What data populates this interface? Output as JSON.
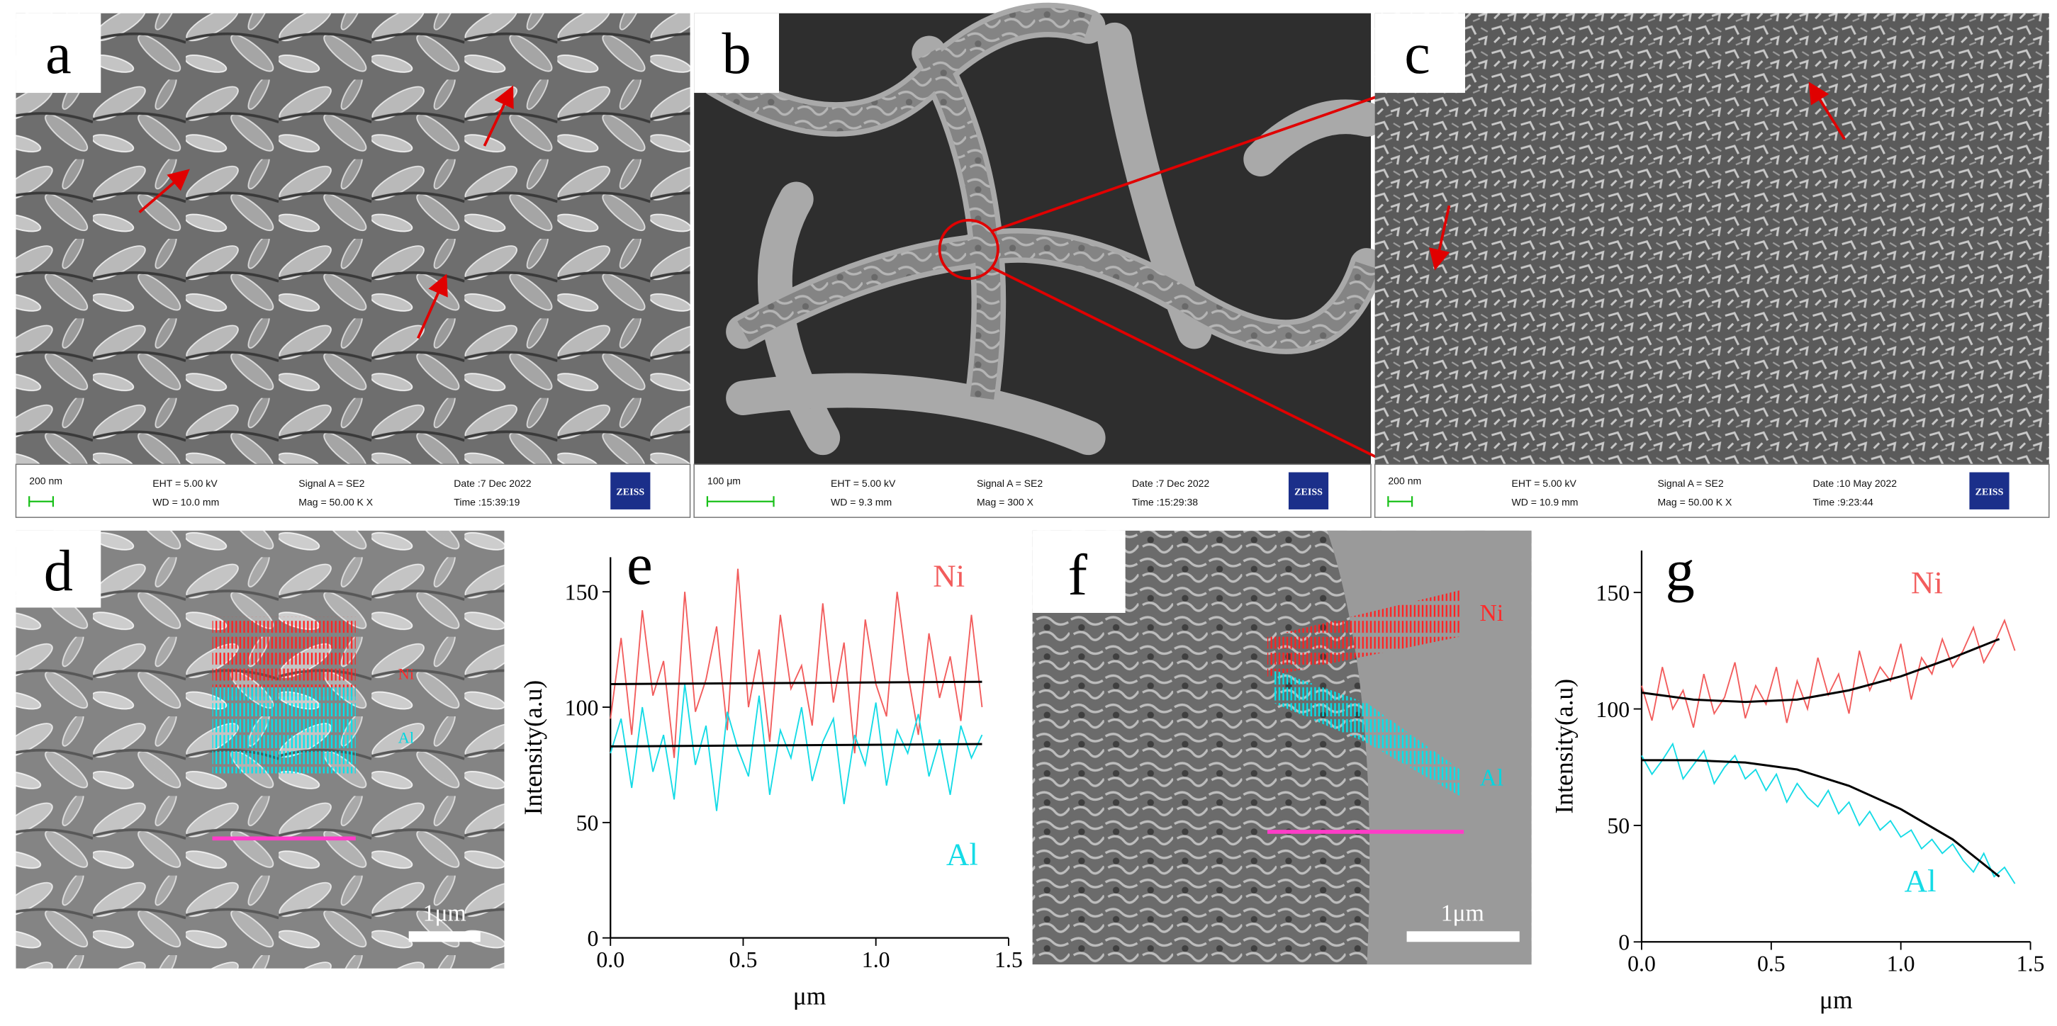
{
  "sem_panels": [
    {
      "label": "a",
      "scale_bar": "200 nm",
      "info": [
        "EHT = 5.00 kV",
        "WD = 10.0 mm",
        "Signal A = SE2",
        "Mag = 50.00 K X",
        "Date :7 Dec 2022",
        "Time :15:39:19"
      ],
      "logo": "ZEISS"
    },
    {
      "label": "b",
      "scale_bar": "100 μm",
      "info": [
        "EHT = 5.00 kV",
        "WD = 9.3 mm",
        "Signal A = SE2",
        "Mag = 300 X",
        "Date :7 Dec 2022",
        "Time :15:29:38"
      ],
      "logo": "ZEISS"
    },
    {
      "label": "c",
      "scale_bar": "200 nm",
      "info": [
        "EHT = 5.00 kV",
        "WD = 10.9 mm",
        "Signal A = SE2",
        "Mag = 50.00 K X",
        "Date :10 May 2022",
        "Time :9:23:44"
      ],
      "logo": "ZEISS"
    }
  ],
  "map_panels": [
    {
      "label": "d",
      "annotations": [
        "Ni",
        "Al"
      ],
      "scale_bar": "1μm"
    },
    {
      "label": "f",
      "annotations": [
        "Ni",
        "Al"
      ],
      "scale_bar": "1μm"
    }
  ],
  "chart_data": [
    {
      "type": "line",
      "panel_label": "e",
      "xlabel": "μm",
      "ylabel": "Intensity(a.u)",
      "xlim": [
        0,
        1.5
      ],
      "ylim": [
        0,
        165
      ],
      "xticks": [
        {
          "value": 0,
          "label": "0.0"
        },
        0.5,
        {
          "value": 1,
          "label": "1.0"
        },
        1.5
      ],
      "yticks": [
        0,
        50,
        100,
        150
      ],
      "series": [
        {
          "name": "Ni",
          "color": "#f25c5c",
          "x": [
            0,
            0.04,
            0.08,
            0.12,
            0.16,
            0.2,
            0.24,
            0.28,
            0.32,
            0.36,
            0.4,
            0.44,
            0.48,
            0.52,
            0.56,
            0.6,
            0.64,
            0.68,
            0.72,
            0.76,
            0.8,
            0.84,
            0.88,
            0.92,
            0.96,
            1,
            1.04,
            1.08,
            1.12,
            1.16,
            1.2,
            1.24,
            1.28,
            1.32,
            1.36,
            1.4
          ],
          "values": [
            95,
            130,
            88,
            142,
            105,
            120,
            78,
            150,
            98,
            112,
            135,
            90,
            160,
            100,
            125,
            85,
            140,
            108,
            118,
            92,
            145,
            102,
            128,
            80,
            138,
            110,
            96,
            150,
            115,
            88,
            132,
            104,
            122,
            94,
            140,
            100
          ]
        },
        {
          "name": "Al",
          "color": "#14dbe6",
          "x": [
            0,
            0.04,
            0.08,
            0.12,
            0.16,
            0.2,
            0.24,
            0.28,
            0.32,
            0.36,
            0.4,
            0.44,
            0.48,
            0.52,
            0.56,
            0.6,
            0.64,
            0.68,
            0.72,
            0.76,
            0.8,
            0.84,
            0.88,
            0.92,
            0.96,
            1,
            1.04,
            1.08,
            1.12,
            1.16,
            1.2,
            1.24,
            1.28,
            1.32,
            1.36,
            1.4
          ],
          "values": [
            80,
            95,
            65,
            100,
            72,
            88,
            60,
            110,
            75,
            92,
            55,
            98,
            82,
            70,
            105,
            62,
            90,
            78,
            100,
            68,
            85,
            95,
            58,
            88,
            75,
            102,
            66,
            90,
            80,
            97,
            70,
            86,
            62,
            92,
            78,
            88
          ]
        },
        {
          "color": "#000000",
          "x": [
            0,
            1.4
          ],
          "values": [
            110,
            111
          ]
        },
        {
          "color": "#000000",
          "x": [
            0,
            1.4
          ],
          "values": [
            83,
            84
          ]
        }
      ]
    },
    {
      "type": "line",
      "panel_label": "g",
      "xlabel": "μm",
      "ylabel": "Intensity(a.u)",
      "xlim": [
        0,
        1.5
      ],
      "ylim": [
        0,
        168
      ],
      "xticks": [
        {
          "value": 0,
          "label": "0.0"
        },
        0.5,
        {
          "value": 1,
          "label": "1.0"
        },
        1.5
      ],
      "yticks": [
        0,
        50,
        100,
        150
      ],
      "series": [
        {
          "name": "Ni",
          "color": "#f25c5c",
          "x": [
            0,
            0.04,
            0.08,
            0.12,
            0.16,
            0.2,
            0.24,
            0.28,
            0.32,
            0.36,
            0.4,
            0.44,
            0.48,
            0.52,
            0.56,
            0.6,
            0.64,
            0.68,
            0.72,
            0.76,
            0.8,
            0.84,
            0.88,
            0.92,
            0.96,
            1,
            1.04,
            1.08,
            1.12,
            1.16,
            1.2,
            1.24,
            1.28,
            1.32,
            1.36,
            1.4,
            1.44
          ],
          "values": [
            110,
            95,
            118,
            100,
            108,
            92,
            115,
            98,
            105,
            120,
            96,
            110,
            102,
            118,
            94,
            112,
            100,
            122,
            106,
            115,
            98,
            125,
            108,
            118,
            112,
            128,
            104,
            122,
            115,
            130,
            118,
            125,
            135,
            120,
            128,
            138,
            125
          ]
        },
        {
          "name": "Al",
          "color": "#14dbe6",
          "x": [
            0,
            0.04,
            0.08,
            0.12,
            0.16,
            0.2,
            0.24,
            0.28,
            0.32,
            0.36,
            0.4,
            0.44,
            0.48,
            0.52,
            0.56,
            0.6,
            0.64,
            0.68,
            0.72,
            0.76,
            0.8,
            0.84,
            0.88,
            0.92,
            0.96,
            1,
            1.04,
            1.08,
            1.12,
            1.16,
            1.2,
            1.24,
            1.28,
            1.32,
            1.36,
            1.4,
            1.44
          ],
          "values": [
            80,
            72,
            78,
            85,
            70,
            76,
            82,
            68,
            75,
            80,
            70,
            74,
            65,
            72,
            60,
            68,
            62,
            58,
            65,
            55,
            60,
            50,
            56,
            48,
            52,
            45,
            48,
            40,
            44,
            38,
            42,
            35,
            30,
            38,
            28,
            32,
            25
          ]
        },
        {
          "color": "#000000",
          "x": [
            0,
            0.2,
            0.4,
            0.6,
            0.8,
            1,
            1.2,
            1.38
          ],
          "values": [
            107,
            104,
            103,
            104,
            108,
            114,
            122,
            130
          ]
        },
        {
          "color": "#000000",
          "x": [
            0,
            0.2,
            0.4,
            0.6,
            0.8,
            1,
            1.2,
            1.38
          ],
          "values": [
            78,
            78,
            77,
            74,
            67,
            57,
            44,
            28
          ]
        }
      ]
    }
  ]
}
